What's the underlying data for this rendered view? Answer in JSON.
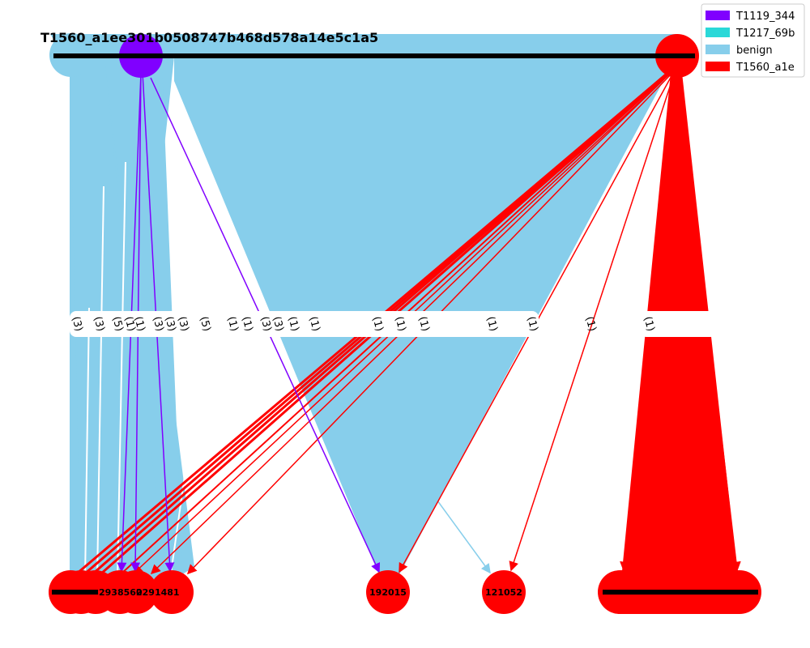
{
  "title": "T1560_a1ee301b0508747b468d578a14e5c1a5",
  "legend": [
    {
      "label": "T1119_344",
      "color": "#8000ff"
    },
    {
      "label": "T1217_69b",
      "color": "#2ad8d8"
    },
    {
      "label": "benign",
      "color": "#87ceeb"
    },
    {
      "label": "T1560_a1e",
      "color": "#ff0000"
    }
  ],
  "colors": {
    "purple": "#8000ff",
    "benign": "#87ceeb",
    "red": "#ff0000",
    "black": "#000000",
    "white": "#ffffff"
  },
  "nodes": {
    "top": [
      {
        "id": "t-benign",
        "color": "benign"
      },
      {
        "id": "t-purple",
        "color": "purple"
      },
      {
        "id": "t-red",
        "color": "red"
      }
    ],
    "bottom": [
      {
        "id": "b-cluster-left",
        "label": "",
        "color": "red"
      },
      {
        "id": "b-2938562",
        "label": "2938562",
        "color": "red"
      },
      {
        "id": "b-0291481",
        "label": "0291481",
        "color": "red"
      },
      {
        "id": "b-192015",
        "label": "192015",
        "color": "red"
      },
      {
        "id": "b-121052",
        "label": "121052",
        "color": "red"
      },
      {
        "id": "b-cluster-right",
        "label": "",
        "color": "red"
      }
    ]
  },
  "edge_labels": [
    "(3)",
    "(3)",
    "(5)",
    "(1)",
    "(1)",
    "(3)",
    "(3)",
    "(3)",
    "(5)",
    "(1)",
    "(1)",
    "(3)",
    "(3)",
    "(1)",
    "(1)",
    "(1)",
    "(1)",
    "(1)",
    "(1)",
    "(1)",
    "(1)",
    "(1)"
  ]
}
